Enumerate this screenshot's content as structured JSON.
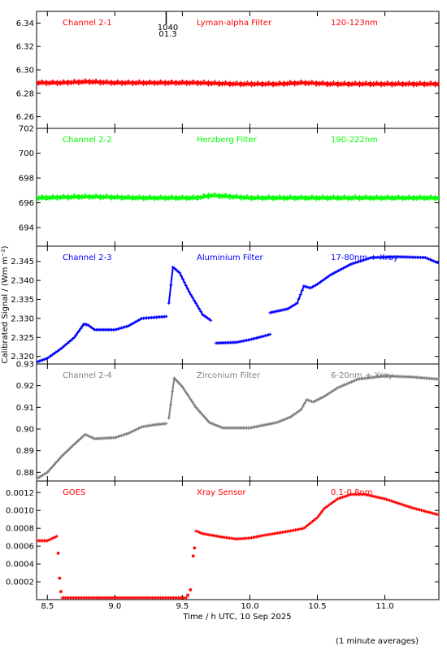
{
  "chart_data": {
    "type": "scatter",
    "x_label": "Time / h UTC, 10 Sep 2025",
    "y_label": "Calibrated Signal / (Wm m⁻²)",
    "footnote": "(1 minute averages)",
    "x_range": [
      8.42,
      11.4
    ],
    "x_ticks": [
      8.5,
      9.0,
      9.5,
      10.0,
      10.5,
      11.0
    ],
    "x_tick_labels": [
      "8.5",
      "9.0",
      "9.5",
      "10.0",
      "10.5",
      "11.0"
    ],
    "marker_time": 9.38,
    "marker_label_top": "1040",
    "marker_label_bottom": "01.3",
    "panels": [
      {
        "channel": "Channel 2-1",
        "filter": "Lyman-alpha Filter",
        "band": "120-123nm",
        "color": "#ff0000",
        "ylim": [
          6.25,
          6.35
        ],
        "y_ticks": [
          6.26,
          6.28,
          6.3,
          6.32,
          6.34
        ],
        "y_tick_labels": [
          "6.26",
          "6.28",
          "6.30",
          "6.32",
          "6.34"
        ],
        "points": [
          [
            8.42,
            6.289
          ],
          [
            8.6,
            6.289
          ],
          [
            8.8,
            6.29
          ],
          [
            9.0,
            6.289
          ],
          [
            9.3,
            6.289
          ],
          [
            9.6,
            6.289
          ],
          [
            9.9,
            6.288
          ],
          [
            10.2,
            6.288
          ],
          [
            10.4,
            6.289
          ],
          [
            10.6,
            6.288
          ],
          [
            10.9,
            6.288
          ],
          [
            11.2,
            6.288
          ],
          [
            11.4,
            6.288
          ]
        ]
      },
      {
        "channel": "Channel 2-2",
        "filter": "Herzberg Filter",
        "band": "190-222nm",
        "color": "#00ff00",
        "ylim": [
          692.5,
          702.0
        ],
        "y_ticks": [
          694,
          696,
          698,
          700,
          702
        ],
        "y_tick_labels": [
          "694",
          "696",
          "698",
          "700",
          "702"
        ],
        "points": [
          [
            8.42,
            696.4
          ],
          [
            8.8,
            696.5
          ],
          [
            9.2,
            696.4
          ],
          [
            9.6,
            696.4
          ],
          [
            9.72,
            696.6
          ],
          [
            10.0,
            696.4
          ],
          [
            10.4,
            696.4
          ],
          [
            10.8,
            696.4
          ],
          [
            11.2,
            696.4
          ],
          [
            11.4,
            696.4
          ]
        ]
      },
      {
        "channel": "Channel 2-3",
        "filter": "Aluminium Filter",
        "band": "17-80nm + Xray",
        "color": "#0000ff",
        "ylim": [
          2.318,
          2.349
        ],
        "y_ticks": [
          2.32,
          2.325,
          2.33,
          2.335,
          2.34,
          2.345
        ],
        "y_tick_labels": [
          "2.320",
          "2.325",
          "2.330",
          "2.335",
          "2.340",
          "2.345"
        ],
        "segments": [
          [
            [
              8.42,
              2.3185
            ],
            [
              8.5,
              2.3195
            ],
            [
              8.6,
              2.322
            ],
            [
              8.7,
              2.325
            ],
            [
              8.77,
              2.3285
            ],
            [
              8.8,
              2.3283
            ],
            [
              8.85,
              2.327
            ],
            [
              9.0,
              2.327
            ],
            [
              9.1,
              2.328
            ],
            [
              9.2,
              2.33
            ],
            [
              9.38,
              2.3305
            ]
          ],
          [
            [
              9.4,
              2.334
            ],
            [
              9.43,
              2.3435
            ],
            [
              9.48,
              2.342
            ],
            [
              9.55,
              2.337
            ],
            [
              9.65,
              2.331
            ],
            [
              9.71,
              2.3295
            ]
          ],
          [
            [
              9.75,
              2.3235
            ],
            [
              9.9,
              2.3237
            ],
            [
              10.0,
              2.3244
            ],
            [
              10.1,
              2.3253
            ],
            [
              10.15,
              2.3258
            ]
          ],
          [
            [
              10.15,
              2.3315
            ],
            [
              10.28,
              2.3325
            ],
            [
              10.35,
              2.334
            ],
            [
              10.4,
              2.3385
            ],
            [
              10.45,
              2.338
            ],
            [
              10.5,
              2.339
            ],
            [
              10.6,
              2.3415
            ],
            [
              10.75,
              2.3443
            ],
            [
              10.9,
              2.346
            ],
            [
              11.1,
              2.3462
            ],
            [
              11.3,
              2.346
            ],
            [
              11.4,
              2.3445
            ]
          ]
        ]
      },
      {
        "channel": "Channel 2-4",
        "filter": "Zirconium Filter",
        "band": "6-20nm + Xray",
        "color": "#808080",
        "ylim": [
          0.876,
          0.93
        ],
        "y_ticks": [
          0.88,
          0.89,
          0.9,
          0.91,
          0.92,
          0.93
        ],
        "y_tick_labels": [
          "0.88",
          "0.89",
          "0.90",
          "0.91",
          "0.92",
          "0.93"
        ],
        "segments": [
          [
            [
              8.42,
              0.877
            ],
            [
              8.5,
              0.88
            ],
            [
              8.6,
              0.887
            ],
            [
              8.7,
              0.893
            ],
            [
              8.78,
              0.8975
            ],
            [
              8.85,
              0.8955
            ],
            [
              9.0,
              0.896
            ],
            [
              9.1,
              0.898
            ],
            [
              9.2,
              0.901
            ],
            [
              9.3,
              0.902
            ],
            [
              9.38,
              0.9025
            ]
          ],
          [
            [
              9.4,
              0.905
            ],
            [
              9.44,
              0.9235
            ],
            [
              9.5,
              0.9195
            ],
            [
              9.6,
              0.91
            ],
            [
              9.7,
              0.903
            ],
            [
              9.8,
              0.9005
            ],
            [
              10.0,
              0.9005
            ],
            [
              10.2,
              0.903
            ],
            [
              10.3,
              0.9055
            ],
            [
              10.38,
              0.909
            ],
            [
              10.42,
              0.9135
            ],
            [
              10.47,
              0.9125
            ],
            [
              10.55,
              0.915
            ],
            [
              10.65,
              0.919
            ],
            [
              10.8,
              0.923
            ],
            [
              11.0,
              0.9245
            ],
            [
              11.2,
              0.924
            ],
            [
              11.4,
              0.923
            ]
          ]
        ]
      },
      {
        "channel": "GOES",
        "filter": "Xray Sensor",
        "band": "0.1-0.8nm",
        "color": "#ff0000",
        "ylim": [
          0.0,
          0.00133
        ],
        "y_ticks": [
          0.0002,
          0.0004,
          0.0006,
          0.0008,
          0.001,
          0.0012
        ],
        "y_tick_labels": [
          "0.0002",
          "0.0004",
          "0.0006",
          "0.0008",
          "0.0010",
          "0.0012"
        ],
        "points": [
          [
            8.42,
            0.00066
          ],
          [
            8.5,
            0.00066
          ],
          [
            8.57,
            0.00071
          ]
        ],
        "scatter": [
          [
            8.58,
            0.00052
          ],
          [
            8.59,
            0.00024
          ],
          [
            8.6,
            9e-05
          ],
          [
            9.54,
            5e-05
          ],
          [
            9.56,
            0.00011
          ],
          [
            9.58,
            0.00049
          ],
          [
            9.59,
            0.00058
          ]
        ],
        "segments": [
          [
            [
              8.61,
              2e-05
            ],
            [
              9.53,
              2e-05
            ]
          ],
          [
            [
              9.6,
              0.00077
            ],
            [
              9.65,
              0.00074
            ],
            [
              9.8,
              0.0007
            ],
            [
              9.9,
              0.00068
            ],
            [
              10.0,
              0.00069
            ],
            [
              10.1,
              0.00072
            ],
            [
              10.3,
              0.00077
            ],
            [
              10.4,
              0.0008
            ],
            [
              10.5,
              0.00092
            ],
            [
              10.55,
              0.00102
            ],
            [
              10.65,
              0.00113
            ],
            [
              10.75,
              0.00118
            ],
            [
              10.85,
              0.00118
            ],
            [
              11.0,
              0.00113
            ],
            [
              11.2,
              0.00103
            ],
            [
              11.4,
              0.00095
            ]
          ]
        ]
      }
    ]
  }
}
